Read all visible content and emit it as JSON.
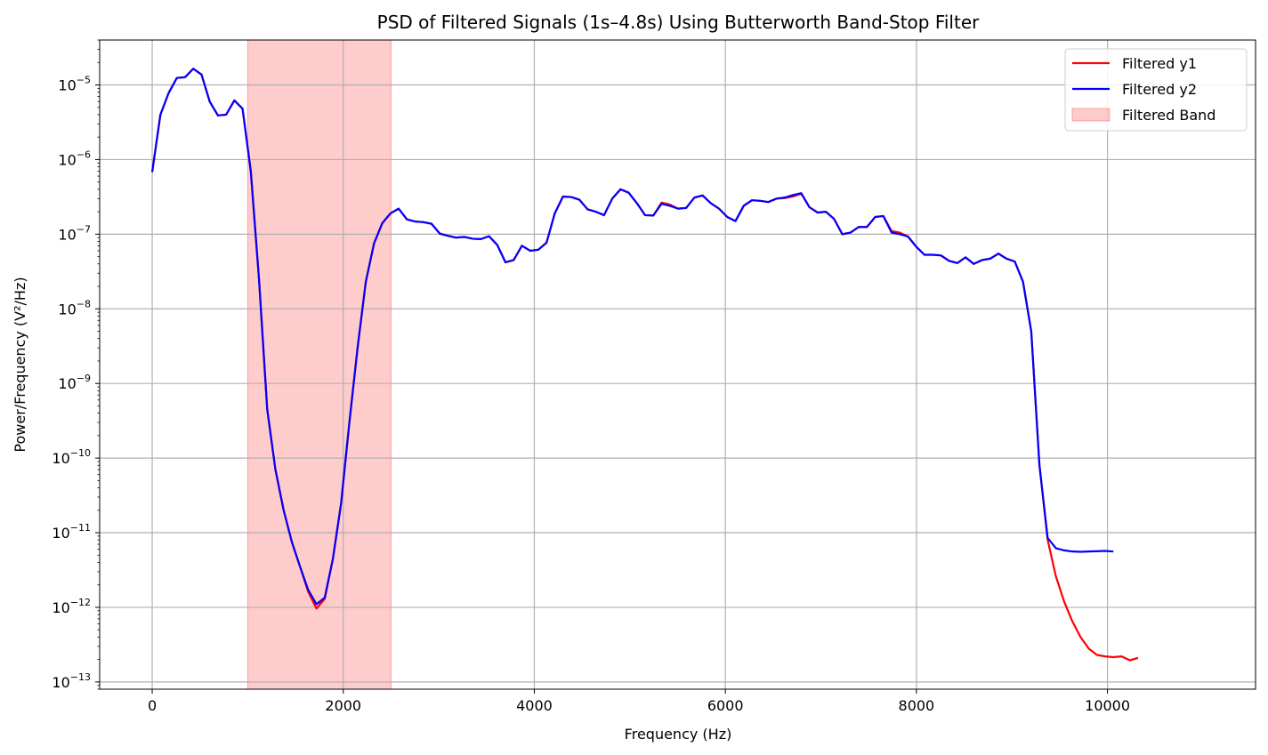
{
  "chart_data": {
    "type": "line",
    "title": "PSD of Filtered Signals (1s–4.8s) Using Butterworth Band-Stop Filter",
    "xlabel": "Frequency (Hz)",
    "ylabel": "Power/Frequency (V²/Hz)",
    "xlim": [
      -550,
      11550
    ],
    "ylim": [
      8e-14,
      4e-05
    ],
    "yscale": "log",
    "grid": true,
    "legend_position": "top-right",
    "x_ticks": [
      {
        "value": 0,
        "label": "0"
      },
      {
        "value": 2000,
        "label": "2000"
      },
      {
        "value": 4000,
        "label": "4000"
      },
      {
        "value": 6000,
        "label": "6000"
      },
      {
        "value": 8000,
        "label": "8000"
      },
      {
        "value": 10000,
        "label": "10000"
      }
    ],
    "y_ticks": [
      {
        "exp": -5,
        "mantissa": "10",
        "power": "−5"
      },
      {
        "exp": -6,
        "mantissa": "10",
        "power": "−6"
      },
      {
        "exp": -7,
        "mantissa": "10",
        "power": "−7"
      },
      {
        "exp": -8,
        "mantissa": "10",
        "power": "−8"
      },
      {
        "exp": -9,
        "mantissa": "10",
        "power": "−9"
      },
      {
        "exp": -10,
        "mantissa": "10",
        "power": "−10"
      },
      {
        "exp": -11,
        "mantissa": "10",
        "power": "−11"
      },
      {
        "exp": -12,
        "mantissa": "10",
        "power": "−12"
      },
      {
        "exp": -13,
        "mantissa": "10",
        "power": "−13"
      }
    ],
    "band": {
      "name": "Filtered Band",
      "x_start": 1000,
      "x_end": 2500,
      "color": "#ff0000",
      "opacity": 0.2
    },
    "series": [
      {
        "name": "Filtered y1",
        "color": "#ff0000",
        "points": [
          [
            0,
            6.8e-07
          ],
          [
            86,
            4e-06
          ],
          [
            172,
            7.8e-06
          ],
          [
            258,
            1.24e-05
          ],
          [
            344,
            1.27e-05
          ],
          [
            430,
            1.65e-05
          ],
          [
            516,
            1.38e-05
          ],
          [
            602,
            6e-06
          ],
          [
            688,
            3.9e-06
          ],
          [
            774,
            4e-06
          ],
          [
            860,
            6.2e-06
          ],
          [
            946,
            4.8e-06
          ],
          [
            1032,
            7e-07
          ],
          [
            1118,
            2.5e-08
          ],
          [
            1204,
            4.5e-10
          ],
          [
            1290,
            7e-11
          ],
          [
            1376,
            2e-11
          ],
          [
            1462,
            7.5e-12
          ],
          [
            1548,
            3.5e-12
          ],
          [
            1634,
            1.6e-12
          ],
          [
            1720,
            9.6e-13
          ],
          [
            1806,
            1.3e-12
          ],
          [
            1892,
            4.5e-12
          ],
          [
            1978,
            2.5e-11
          ],
          [
            2064,
            3e-10
          ],
          [
            2150,
            3e-09
          ],
          [
            2236,
            2.3e-08
          ],
          [
            2322,
            7.5e-08
          ],
          [
            2408,
            1.4e-07
          ],
          [
            2494,
            1.9e-07
          ],
          [
            2580,
            2.2e-07
          ],
          [
            2666,
            1.58e-07
          ],
          [
            2752,
            1.48e-07
          ],
          [
            2838,
            1.45e-07
          ],
          [
            2924,
            1.38e-07
          ],
          [
            3010,
            1.02e-07
          ],
          [
            3096,
            9.5e-08
          ],
          [
            3182,
            9e-08
          ],
          [
            3268,
            9.2e-08
          ],
          [
            3354,
            8.7e-08
          ],
          [
            3440,
            8.6e-08
          ],
          [
            3526,
            9.4e-08
          ],
          [
            3612,
            7.2e-08
          ],
          [
            3698,
            4.2e-08
          ],
          [
            3784,
            4.5e-08
          ],
          [
            3870,
            7e-08
          ],
          [
            3956,
            6e-08
          ],
          [
            4042,
            6.2e-08
          ],
          [
            4128,
            7.7e-08
          ],
          [
            4214,
            1.9e-07
          ],
          [
            4300,
            3.2e-07
          ],
          [
            4386,
            3.15e-07
          ],
          [
            4472,
            2.9e-07
          ],
          [
            4558,
            2.15e-07
          ],
          [
            4644,
            2e-07
          ],
          [
            4730,
            1.8e-07
          ],
          [
            4816,
            3e-07
          ],
          [
            4902,
            4e-07
          ],
          [
            4988,
            3.6e-07
          ],
          [
            5074,
            2.6e-07
          ],
          [
            5160,
            1.8e-07
          ],
          [
            5246,
            1.78e-07
          ],
          [
            5332,
            2.65e-07
          ],
          [
            5418,
            2.5e-07
          ],
          [
            5504,
            2.2e-07
          ],
          [
            5590,
            2.25e-07
          ],
          [
            5676,
            3.1e-07
          ],
          [
            5762,
            3.3e-07
          ],
          [
            5848,
            2.6e-07
          ],
          [
            5934,
            2.2e-07
          ],
          [
            6020,
            1.7e-07
          ],
          [
            6106,
            1.5e-07
          ],
          [
            6192,
            2.4e-07
          ],
          [
            6278,
            2.85e-07
          ],
          [
            6364,
            2.8e-07
          ],
          [
            6450,
            2.7e-07
          ],
          [
            6536,
            3e-07
          ],
          [
            6622,
            3.05e-07
          ],
          [
            6708,
            3.2e-07
          ],
          [
            6794,
            3.5e-07
          ],
          [
            6880,
            2.3e-07
          ],
          [
            6966,
            1.95e-07
          ],
          [
            7052,
            2e-07
          ],
          [
            7138,
            1.6e-07
          ],
          [
            7224,
            1e-07
          ],
          [
            7310,
            1.05e-07
          ],
          [
            7396,
            1.25e-07
          ],
          [
            7482,
            1.25e-07
          ],
          [
            7568,
            1.7e-07
          ],
          [
            7654,
            1.75e-07
          ],
          [
            7740,
            1.1e-07
          ],
          [
            7826,
            1.05e-07
          ],
          [
            7912,
            9.3e-08
          ],
          [
            7998,
            6.8e-08
          ],
          [
            8084,
            5.3e-08
          ],
          [
            8170,
            5.3e-08
          ],
          [
            8256,
            5.2e-08
          ],
          [
            8342,
            4.4e-08
          ],
          [
            8428,
            4.1e-08
          ],
          [
            8514,
            4.9e-08
          ],
          [
            8600,
            4e-08
          ],
          [
            8686,
            4.5e-08
          ],
          [
            8772,
            4.7e-08
          ],
          [
            8858,
            5.5e-08
          ],
          [
            8944,
            4.7e-08
          ],
          [
            9030,
            4.3e-08
          ],
          [
            9116,
            2.3e-08
          ],
          [
            9202,
            5e-09
          ],
          [
            9288,
            8e-11
          ],
          [
            9374,
            8e-12
          ],
          [
            9460,
            2.6e-12
          ],
          [
            9546,
            1.2e-12
          ],
          [
            9632,
            6.5e-13
          ],
          [
            9718,
            4e-13
          ],
          [
            9804,
            2.8e-13
          ],
          [
            9890,
            2.3e-13
          ],
          [
            9976,
            2.2e-13
          ],
          [
            10062,
            2.15e-13
          ],
          [
            10148,
            2.2e-13
          ],
          [
            10234,
            1.95e-13
          ],
          [
            10320,
            2.1e-13
          ]
        ]
      },
      {
        "name": "Filtered y2",
        "color": "#0000ff",
        "points": [
          [
            0,
            6.8e-07
          ],
          [
            86,
            4e-06
          ],
          [
            172,
            7.8e-06
          ],
          [
            258,
            1.24e-05
          ],
          [
            344,
            1.27e-05
          ],
          [
            430,
            1.65e-05
          ],
          [
            516,
            1.38e-05
          ],
          [
            602,
            6e-06
          ],
          [
            688,
            3.9e-06
          ],
          [
            774,
            4e-06
          ],
          [
            860,
            6.2e-06
          ],
          [
            946,
            4.8e-06
          ],
          [
            1032,
            7e-07
          ],
          [
            1118,
            2.5e-08
          ],
          [
            1204,
            4.5e-10
          ],
          [
            1290,
            7e-11
          ],
          [
            1376,
            2e-11
          ],
          [
            1462,
            7.5e-12
          ],
          [
            1548,
            3.5e-12
          ],
          [
            1634,
            1.7e-12
          ],
          [
            1720,
            1.1e-12
          ],
          [
            1806,
            1.35e-12
          ],
          [
            1892,
            4.5e-12
          ],
          [
            1978,
            2.5e-11
          ],
          [
            2064,
            3e-10
          ],
          [
            2150,
            3e-09
          ],
          [
            2236,
            2.3e-08
          ],
          [
            2322,
            7.5e-08
          ],
          [
            2408,
            1.4e-07
          ],
          [
            2494,
            1.9e-07
          ],
          [
            2580,
            2.2e-07
          ],
          [
            2666,
            1.58e-07
          ],
          [
            2752,
            1.48e-07
          ],
          [
            2838,
            1.45e-07
          ],
          [
            2924,
            1.38e-07
          ],
          [
            3010,
            1.02e-07
          ],
          [
            3096,
            9.5e-08
          ],
          [
            3182,
            9e-08
          ],
          [
            3268,
            9.2e-08
          ],
          [
            3354,
            8.7e-08
          ],
          [
            3440,
            8.6e-08
          ],
          [
            3526,
            9.4e-08
          ],
          [
            3612,
            7.2e-08
          ],
          [
            3698,
            4.2e-08
          ],
          [
            3784,
            4.5e-08
          ],
          [
            3870,
            7e-08
          ],
          [
            3956,
            6e-08
          ],
          [
            4042,
            6.2e-08
          ],
          [
            4128,
            7.7e-08
          ],
          [
            4214,
            1.9e-07
          ],
          [
            4300,
            3.2e-07
          ],
          [
            4386,
            3.15e-07
          ],
          [
            4472,
            2.9e-07
          ],
          [
            4558,
            2.15e-07
          ],
          [
            4644,
            2e-07
          ],
          [
            4730,
            1.8e-07
          ],
          [
            4816,
            3e-07
          ],
          [
            4902,
            4e-07
          ],
          [
            4988,
            3.6e-07
          ],
          [
            5074,
            2.6e-07
          ],
          [
            5160,
            1.8e-07
          ],
          [
            5246,
            1.78e-07
          ],
          [
            5332,
            2.55e-07
          ],
          [
            5418,
            2.4e-07
          ],
          [
            5504,
            2.2e-07
          ],
          [
            5590,
            2.25e-07
          ],
          [
            5676,
            3.1e-07
          ],
          [
            5762,
            3.3e-07
          ],
          [
            5848,
            2.6e-07
          ],
          [
            5934,
            2.2e-07
          ],
          [
            6020,
            1.7e-07
          ],
          [
            6106,
            1.5e-07
          ],
          [
            6192,
            2.4e-07
          ],
          [
            6278,
            2.85e-07
          ],
          [
            6364,
            2.8e-07
          ],
          [
            6450,
            2.7e-07
          ],
          [
            6536,
            3e-07
          ],
          [
            6622,
            3.1e-07
          ],
          [
            6708,
            3.35e-07
          ],
          [
            6794,
            3.55e-07
          ],
          [
            6880,
            2.3e-07
          ],
          [
            6966,
            1.95e-07
          ],
          [
            7052,
            2e-07
          ],
          [
            7138,
            1.6e-07
          ],
          [
            7224,
            1e-07
          ],
          [
            7310,
            1.05e-07
          ],
          [
            7396,
            1.25e-07
          ],
          [
            7482,
            1.25e-07
          ],
          [
            7568,
            1.7e-07
          ],
          [
            7654,
            1.75e-07
          ],
          [
            7740,
            1.05e-07
          ],
          [
            7826,
            1e-07
          ],
          [
            7912,
            9.3e-08
          ],
          [
            7998,
            6.8e-08
          ],
          [
            8084,
            5.3e-08
          ],
          [
            8170,
            5.3e-08
          ],
          [
            8256,
            5.2e-08
          ],
          [
            8342,
            4.4e-08
          ],
          [
            8428,
            4.1e-08
          ],
          [
            8514,
            4.9e-08
          ],
          [
            8600,
            4e-08
          ],
          [
            8686,
            4.5e-08
          ],
          [
            8772,
            4.7e-08
          ],
          [
            8858,
            5.5e-08
          ],
          [
            8944,
            4.7e-08
          ],
          [
            9030,
            4.3e-08
          ],
          [
            9116,
            2.3e-08
          ],
          [
            9202,
            5e-09
          ],
          [
            9288,
            8e-11
          ],
          [
            9374,
            8.5e-12
          ],
          [
            9460,
            6.2e-12
          ],
          [
            9546,
            5.8e-12
          ],
          [
            9632,
            5.6e-12
          ],
          [
            9718,
            5.55e-12
          ],
          [
            9804,
            5.6e-12
          ],
          [
            9890,
            5.65e-12
          ],
          [
            9976,
            5.7e-12
          ],
          [
            10062,
            5.6e-12
          ]
        ]
      }
    ]
  }
}
